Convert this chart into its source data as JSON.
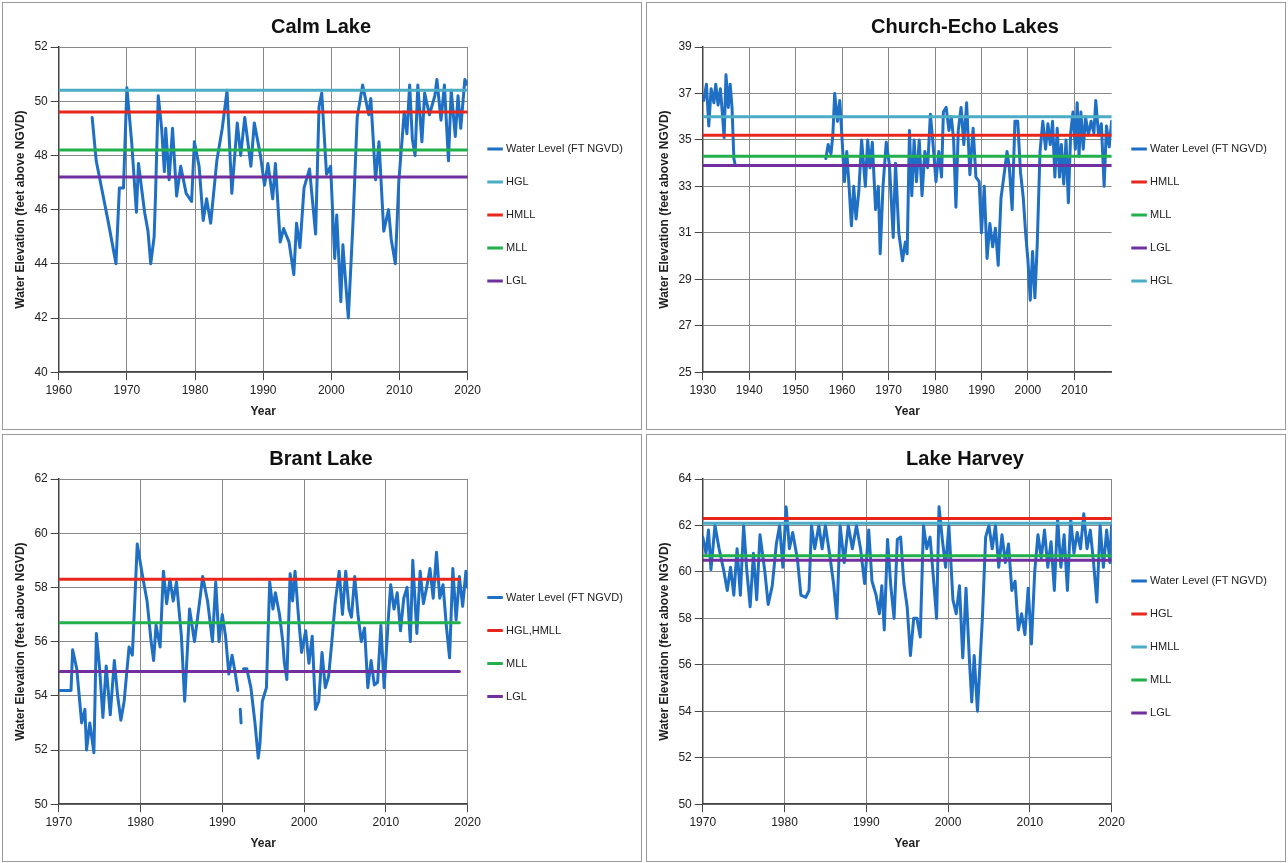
{
  "chart_data": [
    {
      "type": "line",
      "title": "Calm Lake",
      "xlabel": "Year",
      "ylabel": "Water Elevation (feet above NGVD)",
      "xlim": [
        1960,
        2020
      ],
      "xticks": [
        1960,
        1970,
        1980,
        1990,
        2000,
        2010,
        2020
      ],
      "ylim": [
        40,
        52
      ],
      "yticks": [
        40,
        42,
        44,
        46,
        48,
        50,
        52
      ],
      "grid": true,
      "legend": "right",
      "series": [
        {
          "name": "Water Level (FT NGVD)",
          "color": "#1f6fc5",
          "x": [
            1964.9,
            1965.5,
            1967.3,
            1968.4,
            1968.9,
            1969.5,
            1970.0,
            1970.7,
            1971.4,
            1971.7,
            1972.6,
            1973.1,
            1973.5,
            1974.0,
            1974.2,
            1974.6,
            1975.1,
            1975.5,
            1975.7,
            1976.2,
            1976.7,
            1977.3,
            1977.9,
            1978.7,
            1979.5,
            1979.9,
            1980.6,
            1981.2,
            1981.7,
            1982.3,
            1983.2,
            1984.0,
            1984.7,
            1985.4,
            1986.2,
            1986.7,
            1987.3,
            1988.2,
            1988.7,
            1989.6,
            1990.2,
            1990.7,
            1991.4,
            1991.8,
            1992.5,
            1993.0,
            1993.8,
            1994.5,
            1994.9,
            1995.4,
            1996.0,
            1996.8,
            1997.7,
            1998.2,
            1998.6,
            1999.3,
            1999.9,
            2000.5,
            2000.8,
            2001.4,
            2001.7,
            2002.5,
            2003.2,
            2003.8,
            2004.6,
            2005.5,
            2005.8,
            2006.5,
            2007.0,
            2007.7,
            2008.4,
            2008.8,
            2009.4,
            2009.9,
            2010.7,
            2011.1,
            2011.5,
            2011.9,
            2012.3,
            2012.7,
            2013.3,
            2013.7,
            2014.4,
            2015.2,
            2015.5,
            2016.1,
            2016.6,
            2017.2,
            2017.6,
            2018.2,
            2018.6,
            2019.0,
            2019.6,
            2020.0
          ],
          "values": [
            49.4,
            47.8,
            45.5,
            44.0,
            46.8,
            46.8,
            50.5,
            48.5,
            45.9,
            47.7,
            45.9,
            45.2,
            44.0,
            45.0,
            46.5,
            50.2,
            49.0,
            47.4,
            49.0,
            47.1,
            49.0,
            46.5,
            47.6,
            46.6,
            46.3,
            48.5,
            47.6,
            45.6,
            46.4,
            45.5,
            47.8,
            49.0,
            50.4,
            46.6,
            49.2,
            48.0,
            49.4,
            47.6,
            49.2,
            48.0,
            46.9,
            47.7,
            46.4,
            47.7,
            44.8,
            45.3,
            44.8,
            43.6,
            45.5,
            44.6,
            46.8,
            47.5,
            45.1,
            49.8,
            50.3,
            47.3,
            47.6,
            44.2,
            45.8,
            42.6,
            44.7,
            42.0,
            45.6,
            49.4,
            50.6,
            49.5,
            50.1,
            47.1,
            48.5,
            45.2,
            46.0,
            44.9,
            44.0,
            47.0,
            49.6,
            48.8,
            50.6,
            48.6,
            48.0,
            50.6,
            48.5,
            50.3,
            49.5,
            50.2,
            50.8,
            49.3,
            50.6,
            47.8,
            50.4,
            48.7,
            50.2,
            49.0,
            50.8,
            50.6
          ]
        },
        {
          "name": "HGL",
          "color": "#4bacc6",
          "x": [
            1960,
            2020
          ],
          "values": [
            50.4,
            50.4
          ]
        },
        {
          "name": "HMLL",
          "color": "#e8261c",
          "x": [
            1960,
            2020
          ],
          "values": [
            49.6,
            49.6
          ]
        },
        {
          "name": "MLL",
          "color": "#21b04b",
          "x": [
            1960,
            2020
          ],
          "values": [
            48.2,
            48.2
          ]
        },
        {
          "name": "LGL",
          "color": "#7030a0",
          "x": [
            1960,
            2020
          ],
          "values": [
            47.2,
            47.2
          ]
        }
      ]
    },
    {
      "type": "line",
      "title": "Church-Echo Lakes",
      "xlabel": "Year",
      "ylabel": "Water Elevation (feet above NGVD)",
      "xlim": [
        1930,
        2018
      ],
      "xticks": [
        1930,
        1940,
        1950,
        1960,
        1970,
        1980,
        1990,
        2000,
        2010
      ],
      "ylim": [
        25,
        39
      ],
      "yticks": [
        25,
        27,
        29,
        31,
        33,
        35,
        37,
        39
      ],
      "grid": true,
      "legend": "right",
      "series": [
        {
          "name": "Water Level (FT NGVD)",
          "color": "#1f6fc5",
          "x": [
            1930.2,
            1930.8,
            1931.3,
            1931.8,
            1932.4,
            1932.8,
            1933.3,
            1933.8,
            1934.2,
            1934.6,
            1935.0,
            1935.5,
            1935.9,
            1936.3,
            1936.7,
            1937.0,
            1946.0,
            1956.5,
            1957.0,
            1957.6,
            1958.0,
            1958.4,
            1959.0,
            1959.5,
            1960.0,
            1960.5,
            1961.0,
            1961.5,
            1962.0,
            1962.5,
            1963.0,
            1963.6,
            1964.2,
            1965.0,
            1965.5,
            1966.0,
            1966.5,
            1967.2,
            1967.8,
            1968.2,
            1968.8,
            1969.5,
            1970.2,
            1971.0,
            1971.5,
            1972.2,
            1973.0,
            1973.6,
            1974.0,
            1974.5,
            1975.0,
            1975.5,
            1976.0,
            1976.6,
            1977.2,
            1977.8,
            1978.4,
            1979.0,
            1979.5,
            1980.2,
            1980.8,
            1981.4,
            1981.8,
            1982.4,
            1983.0,
            1983.5,
            1984.0,
            1984.5,
            1985.0,
            1985.6,
            1986.2,
            1986.8,
            1987.5,
            1988.2,
            1988.8,
            1989.5,
            1990.0,
            1990.6,
            1991.2,
            1991.8,
            1992.4,
            1993.0,
            1993.6,
            1994.2,
            1994.8,
            1995.5,
            1996.0,
            1996.6,
            1997.2,
            1997.8,
            1998.4,
            1999.0,
            1999.5,
            2000.0,
            2000.5,
            2001.0,
            2001.5,
            2002.0,
            2002.6,
            2003.2,
            2003.8,
            2004.3,
            2004.8,
            2005.3,
            2005.8,
            2006.3,
            2006.8,
            2007.2,
            2007.7,
            2008.2,
            2008.7,
            2009.2,
            2009.7,
            2010.2,
            2010.6,
            2011.0,
            2011.4,
            2011.9,
            2012.4,
            2013.0,
            2013.6,
            2014.2,
            2014.6,
            2015.2,
            2015.8,
            2016.4,
            2016.9,
            2017.5,
            2018.0
          ],
          "values": [
            36.7,
            37.4,
            35.6,
            37.2,
            36.6,
            37.4,
            36.5,
            37.2,
            36.2,
            35.1,
            37.8,
            36.4,
            37.4,
            36.4,
            34.2,
            33.9,
            null,
            34.2,
            34.8,
            34.4,
            35.2,
            37.0,
            35.8,
            36.7,
            35.0,
            33.2,
            34.5,
            33.0,
            31.3,
            33.0,
            31.6,
            32.8,
            35.0,
            33.0,
            35.0,
            33.8,
            34.9,
            32.0,
            33.0,
            30.1,
            33.0,
            34.9,
            33.9,
            30.8,
            34.0,
            31.0,
            29.8,
            30.6,
            30.1,
            35.4,
            32.6,
            35.0,
            33.2,
            35.0,
            32.6,
            34.5,
            33.8,
            36.1,
            35.0,
            33.2,
            34.5,
            33.4,
            36.2,
            36.4,
            35.4,
            36.0,
            35.0,
            32.1,
            35.4,
            36.4,
            34.8,
            36.6,
            33.5,
            35.5,
            33.4,
            33.2,
            31.0,
            33.0,
            29.9,
            31.4,
            30.4,
            31.2,
            29.6,
            32.5,
            33.4,
            34.5,
            33.8,
            32.0,
            35.8,
            35.8,
            33.6,
            32.5,
            31.0,
            29.8,
            28.1,
            30.2,
            28.2,
            30.5,
            34.5,
            35.8,
            34.6,
            35.7,
            34.8,
            35.8,
            33.4,
            35.5,
            33.4,
            34.8,
            33.1,
            35.0,
            32.3,
            35.3,
            36.2,
            34.6,
            36.6,
            34.3,
            36.2,
            34.6,
            36.0,
            35.2,
            35.8,
            35.3,
            36.7,
            35.2,
            35.7,
            33.0,
            35.6,
            34.7,
            35.8
          ]
        },
        {
          "name": "HMLL",
          "color": "#e8261c",
          "x": [
            1930,
            2018
          ],
          "values": [
            35.2,
            35.2
          ]
        },
        {
          "name": "MLL",
          "color": "#21b04b",
          "x": [
            1930,
            2018
          ],
          "values": [
            34.3,
            34.3
          ]
        },
        {
          "name": "LGL",
          "color": "#7030a0",
          "x": [
            1930,
            2018
          ],
          "values": [
            33.9,
            33.9
          ]
        },
        {
          "name": "HGL",
          "color": "#4bacc6",
          "x": [
            1930,
            2018
          ],
          "values": [
            36.0,
            36.0
          ]
        }
      ]
    },
    {
      "type": "line",
      "title": "Brant Lake",
      "xlabel": "Year",
      "ylabel": "Water Elevation (feet above NGVD)",
      "xlim": [
        1970,
        2020
      ],
      "xticks": [
        1970,
        1980,
        1990,
        2000,
        2010,
        2020
      ],
      "ylim": [
        50,
        62
      ],
      "yticks": [
        50,
        52,
        54,
        56,
        58,
        60,
        62
      ],
      "grid": true,
      "legend": "right",
      "series": [
        {
          "name": "Water Level (FT NGVD)",
          "color": "#1f6fc5",
          "x": [
            1970.0,
            1971.5,
            1971.7,
            1972.2,
            1972.8,
            1973.2,
            1973.4,
            1973.8,
            1974.3,
            1974.6,
            1975.0,
            1975.4,
            1975.8,
            1976.3,
            1976.8,
            1977.2,
            1977.6,
            1978.0,
            1978.6,
            1979.0,
            1979.3,
            1979.6,
            1980.2,
            1980.8,
            1981.3,
            1981.6,
            1981.9,
            1982.4,
            1982.8,
            1983.2,
            1983.6,
            1984.0,
            1984.4,
            1985.0,
            1985.4,
            1986.0,
            1986.6,
            1987.2,
            1987.6,
            1988.2,
            1988.8,
            1989.2,
            1989.6,
            1990.0,
            1990.4,
            1990.8,
            1991.2,
            1991.6,
            1991.9,
            1992.05,
            1992.2,
            1992.3,
            1992.45,
            1992.6,
            1993.0,
            1993.5,
            1994.0,
            1994.4,
            1994.6,
            1994.9,
            1995.4,
            1995.8,
            1996.2,
            1996.5,
            1997.0,
            1997.4,
            1997.6,
            1997.9,
            1998.3,
            1998.6,
            1998.9,
            1999.3,
            1999.7,
            2000.2,
            2000.6,
            2001.0,
            2001.4,
            2001.8,
            2002.2,
            2002.6,
            2003.0,
            2003.4,
            2003.8,
            2004.3,
            2004.7,
            2005.1,
            2005.5,
            2005.8,
            2006.2,
            2006.6,
            2007.0,
            2007.4,
            2007.8,
            2008.2,
            2008.6,
            2009.0,
            2009.4,
            2009.8,
            2010.3,
            2010.6,
            2011.0,
            2011.4,
            2011.8,
            2012.2,
            2012.6,
            2013.0,
            2013.3,
            2013.8,
            2014.2,
            2014.6,
            2015.0,
            2015.4,
            2015.8,
            2016.2,
            2016.6,
            2017.0,
            2017.4,
            2017.8,
            2018.2,
            2018.6,
            2019.0,
            2019.4,
            2019.8,
            2020.0
          ],
          "values": [
            54.2,
            54.2,
            55.7,
            55.0,
            53.0,
            53.5,
            52.0,
            53.0,
            51.9,
            56.3,
            55.0,
            53.2,
            55.1,
            53.3,
            55.3,
            54.0,
            53.1,
            53.8,
            55.8,
            55.5,
            57.5,
            59.6,
            58.5,
            57.5,
            56.0,
            55.3,
            56.6,
            55.8,
            58.6,
            57.4,
            58.3,
            57.5,
            58.2,
            56.2,
            53.8,
            57.2,
            56.0,
            57.4,
            58.4,
            57.5,
            56.0,
            58.2,
            56.0,
            57.0,
            56.2,
            54.8,
            55.5,
            54.8,
            54.2,
            null,
            53.5,
            53.0,
            null,
            55.0,
            55.0,
            54.3,
            53.0,
            51.7,
            52.2,
            53.8,
            54.3,
            58.2,
            57.2,
            57.8,
            57.0,
            56.0,
            55.2,
            54.6,
            58.5,
            57.5,
            58.6,
            57.0,
            55.6,
            56.4,
            55.2,
            56.2,
            53.5,
            53.8,
            55.6,
            54.3,
            54.7,
            56.0,
            57.4,
            58.6,
            57.0,
            58.6,
            57.2,
            56.9,
            58.4,
            57.0,
            56.0,
            56.5,
            54.3,
            55.3,
            54.4,
            54.5,
            56.6,
            54.3,
            56.8,
            58.1,
            57.2,
            57.8,
            56.4,
            57.6,
            58.0,
            56.0,
            59.0,
            56.3,
            58.6,
            57.4,
            58.0,
            58.7,
            57.6,
            59.3,
            57.6,
            58.1,
            56.6,
            55.4,
            58.7,
            56.8,
            58.4,
            57.3,
            58.6,
            58.0
          ]
        },
        {
          "name": "HGL,HMLL",
          "color": "#e8261c",
          "x": [
            1970,
            2019
          ],
          "values": [
            58.3,
            58.3
          ]
        },
        {
          "name": "MLL",
          "color": "#21b04b",
          "x": [
            1970,
            2019
          ],
          "values": [
            56.7,
            56.7
          ]
        },
        {
          "name": "LGL",
          "color": "#7030a0",
          "x": [
            1970,
            2019
          ],
          "values": [
            54.9,
            54.9
          ]
        }
      ]
    },
    {
      "type": "line",
      "title": "Lake Harvey",
      "xlabel": "Year",
      "ylabel": "Water Elevation (feet above NGVD)",
      "xlim": [
        1970,
        2020
      ],
      "xticks": [
        1970,
        1980,
        1990,
        2000,
        2010,
        2020
      ],
      "ylim": [
        50,
        64
      ],
      "yticks": [
        50,
        52,
        54,
        56,
        58,
        60,
        62,
        64
      ],
      "grid": true,
      "legend": "right",
      "series": [
        {
          "name": "Water Level (FT NGVD)",
          "color": "#1f6fc5",
          "x": [
            1970.0,
            1970.4,
            1970.7,
            1971.0,
            1971.5,
            1972.0,
            1972.6,
            1973.0,
            1973.4,
            1973.8,
            1974.2,
            1974.6,
            1975.0,
            1975.4,
            1975.8,
            1976.2,
            1976.6,
            1977.0,
            1977.6,
            1978.0,
            1978.5,
            1979.0,
            1979.4,
            1979.8,
            1980.2,
            1980.6,
            1981.0,
            1981.6,
            1982.0,
            1982.6,
            1983.0,
            1983.3,
            1983.7,
            1984.2,
            1984.6,
            1985.0,
            1985.5,
            1986.0,
            1986.4,
            1986.8,
            1987.3,
            1987.8,
            1988.3,
            1988.8,
            1989.3,
            1989.8,
            1990.3,
            1990.7,
            1991.2,
            1991.6,
            1991.9,
            1992.2,
            1992.6,
            1993.0,
            1993.4,
            1993.8,
            1994.2,
            1994.6,
            1995.0,
            1995.4,
            1995.8,
            1996.2,
            1996.6,
            1997.0,
            1997.4,
            1997.8,
            1998.2,
            1998.6,
            1998.9,
            1999.3,
            1999.7,
            2000.1,
            2000.6,
            2001.0,
            2001.4,
            2001.8,
            2002.2,
            2002.6,
            2002.9,
            2003.2,
            2003.6,
            2004.2,
            2004.6,
            2005.0,
            2005.4,
            2005.8,
            2006.2,
            2006.6,
            2007.0,
            2007.4,
            2007.8,
            2008.2,
            2008.6,
            2009.0,
            2009.4,
            2009.8,
            2010.2,
            2010.6,
            2011.0,
            2011.4,
            2011.8,
            2012.2,
            2012.6,
            2013.0,
            2013.4,
            2013.8,
            2014.2,
            2014.6,
            2015.0,
            2015.4,
            2015.8,
            2016.2,
            2016.6,
            2017.0,
            2017.4,
            2017.8,
            2018.2,
            2018.6,
            2019.0,
            2019.4,
            2019.8,
            2020.0
          ],
          "values": [
            61.5,
            60.8,
            61.8,
            60.1,
            62.0,
            61.0,
            60.0,
            59.2,
            60.2,
            59.0,
            61.0,
            59.0,
            62.0,
            60.0,
            58.5,
            60.8,
            58.8,
            61.6,
            60.0,
            58.6,
            59.4,
            61.2,
            62.0,
            60.2,
            62.8,
            61.0,
            61.7,
            60.5,
            59.0,
            58.9,
            59.2,
            62.0,
            61.0,
            62.0,
            61.0,
            62.0,
            60.8,
            59.5,
            58.0,
            62.0,
            60.4,
            62.0,
            61.0,
            62.0,
            61.0,
            59.5,
            61.8,
            59.6,
            59.0,
            58.2,
            59.4,
            57.5,
            61.4,
            59.4,
            58.0,
            61.4,
            61.5,
            59.5,
            58.5,
            56.4,
            58.0,
            58.0,
            57.2,
            62.0,
            61.0,
            61.5,
            59.8,
            58.0,
            62.8,
            61.4,
            60.2,
            62.0,
            58.8,
            58.2,
            59.4,
            56.3,
            59.3,
            56.3,
            54.4,
            56.4,
            54.0,
            58.0,
            61.5,
            62.0,
            61.0,
            62.0,
            60.2,
            61.6,
            60.4,
            61.2,
            59.2,
            59.6,
            57.5,
            58.2,
            57.3,
            59.3,
            56.9,
            60.0,
            61.6,
            60.6,
            61.8,
            60.2,
            61.3,
            59.2,
            62.3,
            60.2,
            61.6,
            59.2,
            62.3,
            60.8,
            61.7,
            61.0,
            62.5,
            61.0,
            61.8,
            60.4,
            58.7,
            62.0,
            60.2,
            61.8,
            60.4,
            62.0
          ]
        },
        {
          "name": "HGL",
          "color": "#e8261c",
          "x": [
            1970,
            2020
          ],
          "values": [
            62.3,
            62.3
          ]
        },
        {
          "name": "HMLL",
          "color": "#4bacc6",
          "x": [
            1970,
            2020
          ],
          "values": [
            62.1,
            62.1
          ]
        },
        {
          "name": "MLL",
          "color": "#21b04b",
          "x": [
            1970,
            2020
          ],
          "values": [
            60.7,
            60.7
          ]
        },
        {
          "name": "LGL",
          "color": "#7030a0",
          "x": [
            1970,
            2020
          ],
          "values": [
            60.5,
            60.5
          ]
        }
      ]
    }
  ]
}
